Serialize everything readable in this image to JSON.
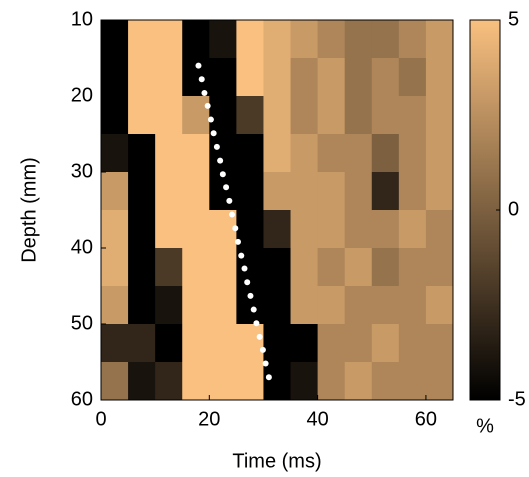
{
  "chart_data": {
    "type": "heatmap",
    "xlabel": "Time (ms)",
    "ylabel": "Depth (mm)",
    "x": [
      2.5,
      7.5,
      12.5,
      17.5,
      22.5,
      27.5,
      32.5,
      37.5,
      42.5,
      47.5,
      52.5,
      57.5,
      62.5
    ],
    "y": [
      12.5,
      17.5,
      22.5,
      27.5,
      32.5,
      37.5,
      42.5,
      47.5,
      52.5,
      57.5
    ],
    "z": [
      [
        -5,
        5,
        5,
        -5,
        -4,
        5,
        4,
        3,
        2,
        1,
        1,
        2,
        3
      ],
      [
        -5,
        5,
        5,
        -5,
        -5,
        5,
        4,
        2,
        3,
        1,
        2,
        1,
        3
      ],
      [
        -5,
        5,
        5,
        3,
        -5,
        -2,
        4,
        2,
        3,
        1,
        2,
        2,
        3
      ],
      [
        -4,
        -5,
        5,
        5,
        -5,
        -5,
        4,
        3,
        2,
        2,
        0,
        2,
        3
      ],
      [
        3,
        -5,
        5,
        5,
        -5,
        -5,
        3,
        3,
        3,
        2,
        -3,
        2,
        3
      ],
      [
        4,
        -5,
        5,
        5,
        5,
        -5,
        -3,
        3,
        3,
        2,
        2,
        3,
        2
      ],
      [
        4,
        -5,
        -2,
        5,
        5,
        -5,
        -5,
        3,
        2,
        3,
        1,
        2,
        2
      ],
      [
        3,
        -5,
        -4,
        5,
        5,
        -5,
        -5,
        3,
        3,
        2,
        2,
        2,
        3
      ],
      [
        -3,
        -3,
        -5,
        5,
        5,
        5,
        -5,
        -5,
        2,
        2,
        3,
        2,
        2
      ],
      [
        1,
        -4,
        -3,
        5,
        5,
        5,
        -5,
        -4,
        2,
        3,
        2,
        2,
        2
      ]
    ],
    "xlim": [
      0,
      65
    ],
    "xticks": [
      0,
      20,
      40,
      60
    ],
    "ylim": [
      10,
      60
    ],
    "yticks": [
      10,
      20,
      30,
      40,
      50,
      60
    ],
    "y_inverted": true,
    "colormap": [
      "#000000",
      "#f9c080"
    ],
    "colorbar": {
      "lim": [
        -5,
        5
      ],
      "ticks": [
        5,
        0,
        -5
      ],
      "label": "%"
    },
    "overlay": {
      "type": "scatter",
      "color": "#ffffff",
      "x": [
        18.0,
        18.6,
        19.1,
        19.7,
        20.3,
        20.8,
        21.4,
        22.0,
        22.5,
        23.1,
        23.7,
        24.2,
        24.8,
        25.3,
        25.9,
        26.5,
        27.0,
        27.6,
        28.2,
        28.7,
        29.3,
        29.9,
        30.4,
        31.0
      ],
      "y": [
        16.0,
        17.8,
        19.6,
        21.3,
        23.1,
        24.9,
        26.7,
        28.5,
        30.3,
        32.0,
        33.8,
        35.6,
        37.4,
        39.2,
        41.0,
        42.7,
        44.5,
        46.3,
        48.1,
        49.9,
        51.7,
        53.4,
        55.2,
        57.0
      ]
    }
  }
}
